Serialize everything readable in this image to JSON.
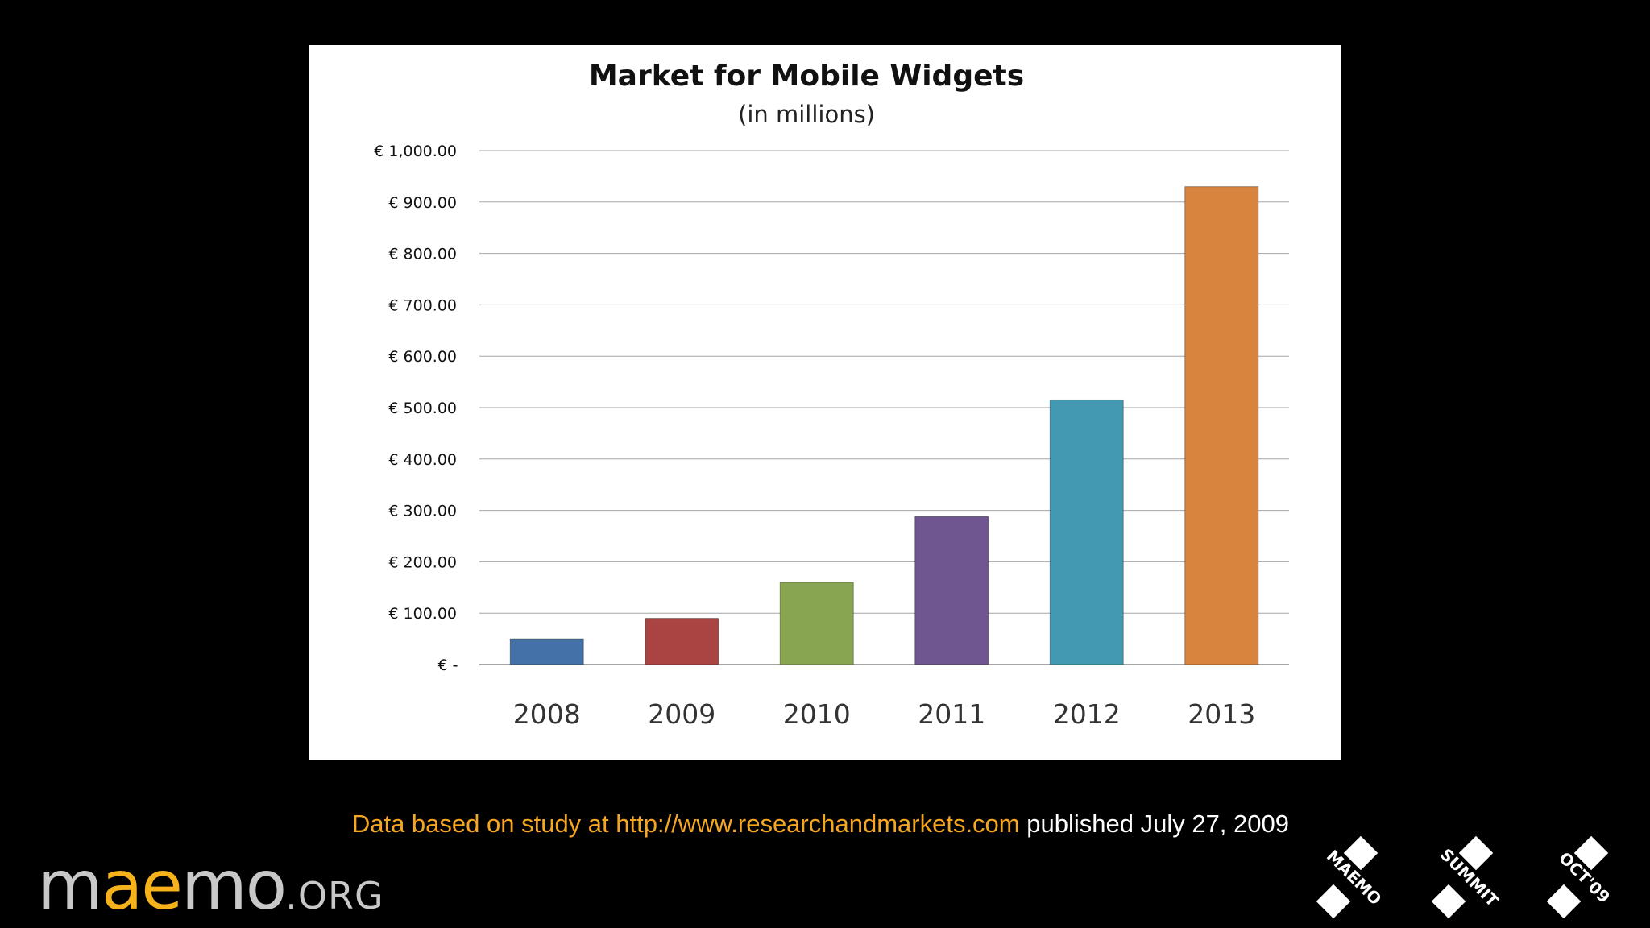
{
  "chart_data": {
    "type": "bar",
    "title": "Market for Mobile Widgets",
    "subtitle": "(in millions)",
    "categories": [
      "2008",
      "2009",
      "2010",
      "2011",
      "2012",
      "2013"
    ],
    "values": [
      50,
      90,
      160,
      288,
      515,
      930
    ],
    "ylim": [
      0,
      1000
    ],
    "ytick_values": [
      0,
      100,
      200,
      300,
      400,
      500,
      600,
      700,
      800,
      900,
      1000
    ],
    "ytick_labels": [
      "€ -",
      "€ 100.00",
      "€ 200.00",
      "€ 300.00",
      "€ 400.00",
      "€ 500.00",
      "€ 600.00",
      "€ 700.00",
      "€ 800.00",
      "€ 900.00",
      "€ 1,000.00"
    ],
    "bar_colors": [
      "#4472a8",
      "#a94442",
      "#88a552",
      "#6f5690",
      "#4399b2",
      "#d9843e"
    ],
    "grid": true,
    "legend": "none"
  },
  "caption": {
    "prefix": "Data based on study at http://www.researchandmarkets.com",
    "suffix": "published July 27, 2009"
  },
  "logo": {
    "word_start": "m",
    "word_accent": "ae",
    "word_end": "mo",
    "suffix": ".ORG"
  },
  "badges": [
    "MAEMO",
    "SUMMIT",
    "OCT'09"
  ],
  "colors": {
    "caption_accent": "#f5a623",
    "logo_accent": "#f5b21b"
  }
}
